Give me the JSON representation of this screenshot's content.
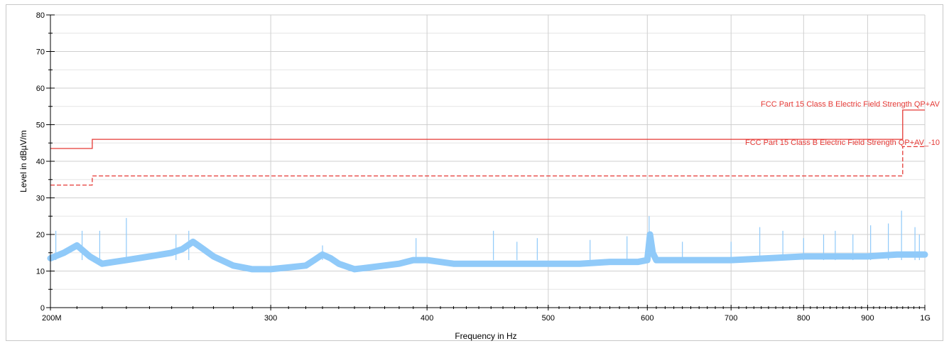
{
  "chart_data": {
    "type": "line",
    "title": "",
    "xlabel": "Frequency in Hz",
    "ylabel": "Level in dBµV/m",
    "xscale": "log",
    "xlim": [
      200000000,
      1000000000
    ],
    "ylim": [
      0,
      80
    ],
    "grid": true,
    "x_ticks": [
      {
        "value": 200000000,
        "label": "200M"
      },
      {
        "value": 300000000,
        "label": "300"
      },
      {
        "value": 400000000,
        "label": "400"
      },
      {
        "value": 500000000,
        "label": "500"
      },
      {
        "value": 600000000,
        "label": "600"
      },
      {
        "value": 700000000,
        "label": "700"
      },
      {
        "value": 800000000,
        "label": "800"
      },
      {
        "value": 900000000,
        "label": "900"
      },
      {
        "value": 1000000000,
        "label": "1G"
      }
    ],
    "y_ticks": [
      0,
      10,
      20,
      30,
      40,
      50,
      60,
      70,
      80
    ],
    "series": [
      {
        "name": "FCC Part 15 Class B Electric Field Strength QP+AV",
        "color": "#e53935",
        "style": "solid",
        "x": [
          200000000,
          216000000,
          216000000,
          960000000,
          960000000,
          1000000000
        ],
        "y": [
          43.5,
          43.5,
          46,
          46,
          54,
          54
        ]
      },
      {
        "name": "FCC Part 15 Class B Electric Field Strength QP+AV_-10",
        "color": "#e53935",
        "style": "dashed",
        "x": [
          200000000,
          216000000,
          216000000,
          960000000,
          960000000,
          1000000000
        ],
        "y": [
          33.5,
          33.5,
          36,
          36,
          44,
          44
        ]
      },
      {
        "name": "",
        "color": "#90caf9",
        "style": "solid",
        "x": [
          200000000,
          205000000,
          210000000,
          215000000,
          220000000,
          225000000,
          230000000,
          240000000,
          250000000,
          255000000,
          260000000,
          265000000,
          270000000,
          280000000,
          290000000,
          300000000,
          310000000,
          320000000,
          325000000,
          330000000,
          335000000,
          340000000,
          350000000,
          360000000,
          380000000,
          390000000,
          400000000,
          420000000,
          450000000,
          480000000,
          500000000,
          530000000,
          560000000,
          590000000,
          600000000,
          603000000,
          606000000,
          610000000,
          650000000,
          700000000,
          750000000,
          800000000,
          850000000,
          900000000,
          950000000,
          1000000000
        ],
        "y": [
          13.5,
          15,
          17,
          14,
          12,
          12.5,
          13,
          14,
          15,
          16,
          18,
          16,
          14,
          11.5,
          10.5,
          10.5,
          11,
          11.5,
          13,
          14.5,
          13.5,
          12,
          10.5,
          11,
          12,
          13,
          13,
          12,
          12,
          12,
          12,
          12,
          12.5,
          12.5,
          13,
          20,
          15,
          13,
          13,
          13,
          13.5,
          14,
          14,
          14,
          14.5,
          14.5
        ]
      },
      {
        "name": "",
        "color": "#90caf9",
        "style": "spikes",
        "x": [
          202000000,
          212000000,
          219000000,
          230000000,
          252000000,
          258000000,
          330000000,
          392000000,
          452000000,
          472000000,
          490000000,
          540000000,
          578000000,
          602000000,
          640000000,
          700000000,
          738000000,
          770000000,
          800000000,
          830000000,
          848000000,
          876000000,
          905000000,
          935000000,
          958000000,
          982000000,
          990000000
        ],
        "y": [
          21,
          21,
          21,
          24.5,
          20,
          21,
          17,
          19,
          21,
          18,
          19,
          18.5,
          19.5,
          25,
          18,
          18,
          22,
          21,
          19,
          20,
          21,
          20,
          22.5,
          23,
          26.5,
          22,
          20
        ]
      }
    ],
    "annotations": [
      {
        "text": "FCC Part 15 Class B Electric Field Strength QP+AV",
        "color": "#e53935"
      },
      {
        "text": "FCC Part 15 Class B Electric Field Strength QP+AV_-10",
        "color": "#e53935"
      }
    ]
  }
}
